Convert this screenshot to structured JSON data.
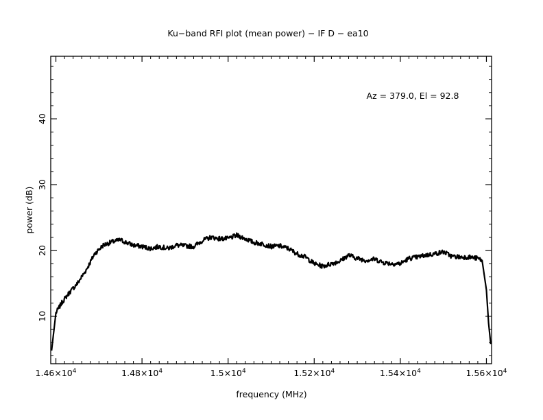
{
  "chart_data": {
    "type": "line",
    "title": "Ku−band RFI plot (mean power) − IF D − ea10",
    "xlabel": "frequency (MHz)",
    "ylabel": "power (dB)",
    "annotation": "Az = 379.0, El = 92.8",
    "xlim": [
      14588,
      15612
    ],
    "ylim": [
      2.8,
      49.5
    ],
    "x_ticks": [
      {
        "value": 14600,
        "mantissa": "1.46",
        "exp": "4"
      },
      {
        "value": 14800,
        "mantissa": "1.48",
        "exp": "4"
      },
      {
        "value": 15000,
        "mantissa": "1.5",
        "exp": "4"
      },
      {
        "value": 15200,
        "mantissa": "1.52",
        "exp": "4"
      },
      {
        "value": 15400,
        "mantissa": "1.54",
        "exp": "4"
      },
      {
        "value": 15600,
        "mantissa": "1.56",
        "exp": "4"
      }
    ],
    "y_ticks": [
      10,
      20,
      30,
      40
    ],
    "series": [
      {
        "color": "#000000",
        "x": [
          14590,
          14600,
          14615,
          14630,
          14650,
          14670,
          14690,
          14710,
          14730,
          14750,
          14760,
          14780,
          14800,
          14820,
          14840,
          14860,
          14880,
          14900,
          14920,
          14940,
          14960,
          14980,
          15000,
          15020,
          15040,
          15060,
          15080,
          15100,
          15120,
          15140,
          15160,
          15180,
          15200,
          15220,
          15240,
          15260,
          15280,
          15300,
          15320,
          15340,
          15360,
          15380,
          15400,
          15420,
          15440,
          15460,
          15480,
          15500,
          15520,
          15540,
          15560,
          15580,
          15590,
          15600,
          15605,
          15610
        ],
        "y": [
          4.8,
          10.5,
          12.2,
          13.5,
          15.0,
          17.0,
          19.5,
          20.8,
          21.3,
          21.6,
          21.3,
          20.8,
          20.6,
          20.3,
          20.6,
          20.3,
          20.8,
          20.7,
          20.6,
          21.5,
          22.0,
          21.8,
          21.8,
          22.3,
          21.8,
          21.2,
          21.0,
          20.6,
          20.7,
          20.3,
          19.5,
          19.0,
          18.0,
          17.6,
          18.0,
          18.4,
          19.3,
          18.8,
          18.5,
          18.7,
          18.2,
          18.0,
          18.0,
          18.8,
          19.0,
          19.3,
          19.5,
          19.8,
          19.1,
          19.0,
          19.0,
          18.8,
          18.5,
          14.0,
          9.0,
          5.8
        ]
      }
    ],
    "grid": false,
    "legend": "none"
  }
}
